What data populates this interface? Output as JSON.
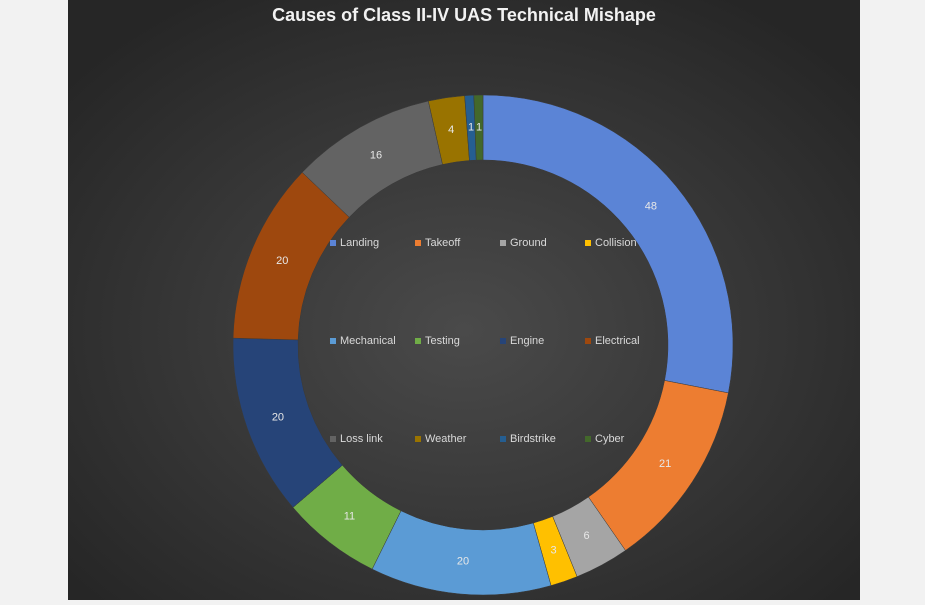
{
  "chart_data": {
    "type": "donut",
    "title": "Causes of Class II-IV UAS Technical Mishape",
    "categories": [
      "Landing",
      "Takeoff",
      "Ground",
      "Collision",
      "Mechanical",
      "Testing",
      "Engine",
      "Electrical",
      "Loss link",
      "Weather",
      "Birdstrike",
      "Cyber"
    ],
    "values": [
      48,
      21,
      6,
      3,
      20,
      11,
      20,
      20,
      16,
      4,
      1,
      1
    ],
    "colors": [
      "#5b84d6",
      "#ed7d31",
      "#a5a5a5",
      "#ffc000",
      "#5b9bd5",
      "#70ad47",
      "#264478",
      "#9e480e",
      "#636363",
      "#997300",
      "#255e91",
      "#43682b"
    ],
    "legend": "center"
  }
}
